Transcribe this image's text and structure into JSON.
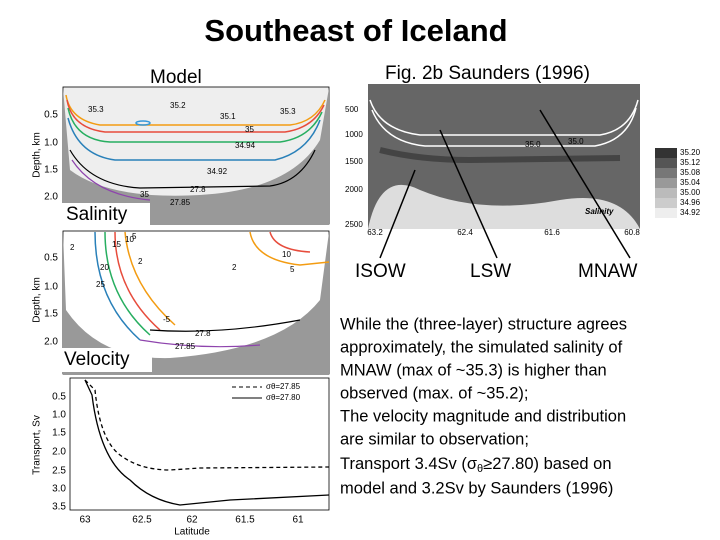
{
  "title": "Southeast of Iceland",
  "model_label": "Model",
  "figure_label": "Fig. 2b Saunders (1996)",
  "salinity_panel": {
    "label": "Salinity",
    "y_axis_label": "Depth, km",
    "yticks": [
      "0.5",
      "1.0",
      "1.5",
      "2.0"
    ],
    "contour_labels": [
      "35.3",
      "35.2",
      "35.3",
      "35.1",
      "35",
      "34.94",
      "34.92",
      "27.8",
      "35",
      "27.85"
    ]
  },
  "velocity_panel": {
    "label": "Velocity",
    "y_axis_label": "Depth, km",
    "yticks": [
      "0.5",
      "1.0",
      "1.5",
      "2.0"
    ],
    "contour_labels": [
      "2",
      "20",
      "15",
      "10",
      "5",
      "2",
      "10",
      "2",
      "5",
      "25",
      "-5",
      "27.8",
      "27.85"
    ]
  },
  "transport_panel": {
    "y_axis_label": "Transport, Sv",
    "yticks": [
      "0.5",
      "1.0",
      "1.5",
      "2.0",
      "2.5",
      "3.0",
      "3.5"
    ],
    "legend": [
      "σθ=27.85",
      "σθ=27.80"
    ],
    "xticks": [
      "63",
      "62.5",
      "62",
      "61.5",
      "61"
    ],
    "x_axis_label": "Latitude"
  },
  "observed_panel": {
    "label": "Salinity",
    "yticks": [
      "500",
      "1000",
      "1500",
      "2000",
      "2500"
    ],
    "xticks": [
      "63.2",
      "62.4",
      "61.6",
      "60.8"
    ],
    "legend": [
      "35.20",
      "35.12",
      "35.08",
      "35.04",
      "35.00",
      "34.96",
      "34.92"
    ],
    "contour_labels": [
      "35.0",
      "35.0"
    ]
  },
  "water_masses": [
    "ISOW",
    "LSW",
    "MNAW"
  ],
  "paragraph": [
    "While the (three-layer) structure agrees",
    "approximately, the simulated salinity of",
    "MNAW (max of ~35.3) is higher than",
    "observed (max. of ~35.2);",
    "The velocity magnitude and distribution",
    "are similar to observation;",
    {
      "before": "Transport 3.4Sv (",
      "symbol": "σ",
      "sub": "θ",
      "after": "≥27.80) based on"
    },
    "model and 3.2Sv by Saunders (1996)"
  ]
}
